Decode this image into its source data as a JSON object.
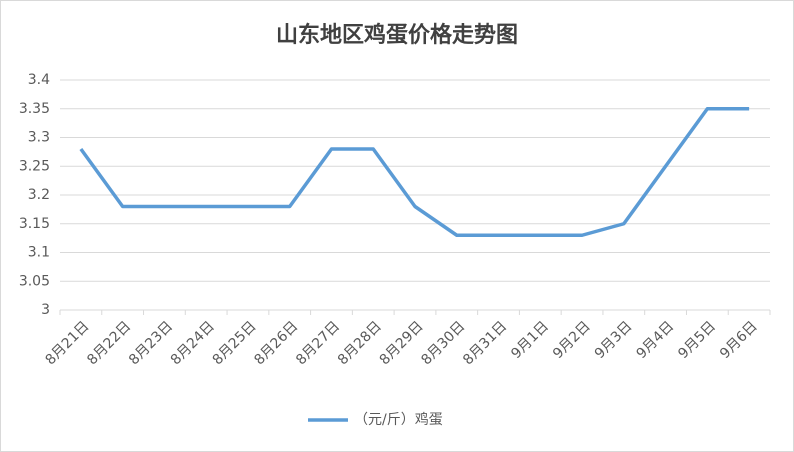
{
  "chart_data": {
    "type": "line",
    "title": "山东地区鸡蛋价格走势图",
    "categories": [
      "8月21日",
      "8月22日",
      "8月23日",
      "8月24日",
      "8月25日",
      "8月26日",
      "8月27日",
      "8月28日",
      "8月29日",
      "8月30日",
      "8月31日",
      "9月1日",
      "9月2日",
      "9月3日",
      "9月4日",
      "9月5日",
      "9月6日"
    ],
    "series": [
      {
        "name": "（元/斤）鸡蛋",
        "color": "#5b9bd5",
        "values": [
          3.28,
          3.18,
          3.18,
          3.18,
          3.18,
          3.18,
          3.28,
          3.28,
          3.18,
          3.13,
          3.13,
          3.13,
          3.13,
          3.15,
          3.25,
          3.35,
          3.35
        ]
      }
    ],
    "ylim": [
      3,
      3.4
    ],
    "yticks": [
      3,
      3.05,
      3.1,
      3.15,
      3.2,
      3.25,
      3.3,
      3.35,
      3.4
    ],
    "grid": true,
    "legend": "bottom"
  }
}
